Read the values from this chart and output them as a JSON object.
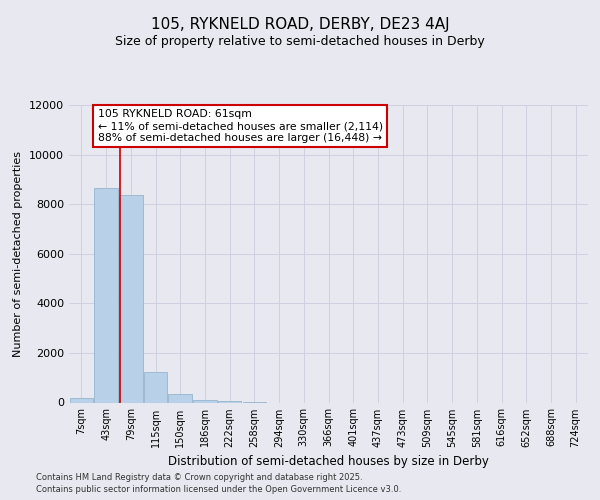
{
  "title_line1": "105, RYKNELD ROAD, DERBY, DE23 4AJ",
  "title_line2": "Size of property relative to semi-detached houses in Derby",
  "xlabel": "Distribution of semi-detached houses by size in Derby",
  "ylabel": "Number of semi-detached properties",
  "annotation_title": "105 RYKNELD ROAD: 61sqm",
  "annotation_line2": "← 11% of semi-detached houses are smaller (2,114)",
  "annotation_line3": "88% of semi-detached houses are larger (16,448) →",
  "footer_line1": "Contains HM Land Registry data © Crown copyright and database right 2025.",
  "footer_line2": "Contains public sector information licensed under the Open Government Licence v3.0.",
  "categories": [
    "7sqm",
    "43sqm",
    "79sqm",
    "115sqm",
    "150sqm",
    "186sqm",
    "222sqm",
    "258sqm",
    "294sqm",
    "330sqm",
    "366sqm",
    "401sqm",
    "437sqm",
    "473sqm",
    "509sqm",
    "545sqm",
    "581sqm",
    "616sqm",
    "652sqm",
    "688sqm",
    "724sqm"
  ],
  "values": [
    200,
    8650,
    8350,
    1250,
    350,
    120,
    50,
    5,
    0,
    0,
    0,
    0,
    0,
    0,
    0,
    0,
    0,
    0,
    0,
    0,
    0
  ],
  "bar_color": "#b8d0e8",
  "bar_edge_color": "#8aaec8",
  "grid_color": "#d0d0e0",
  "red_line_x": 1.55,
  "annotation_box_color": "#ffffff",
  "annotation_box_edge": "#cc0000",
  "ylim": [
    0,
    12000
  ],
  "yticks": [
    0,
    2000,
    4000,
    6000,
    8000,
    10000,
    12000
  ],
  "background_color": "#e8e8f0"
}
